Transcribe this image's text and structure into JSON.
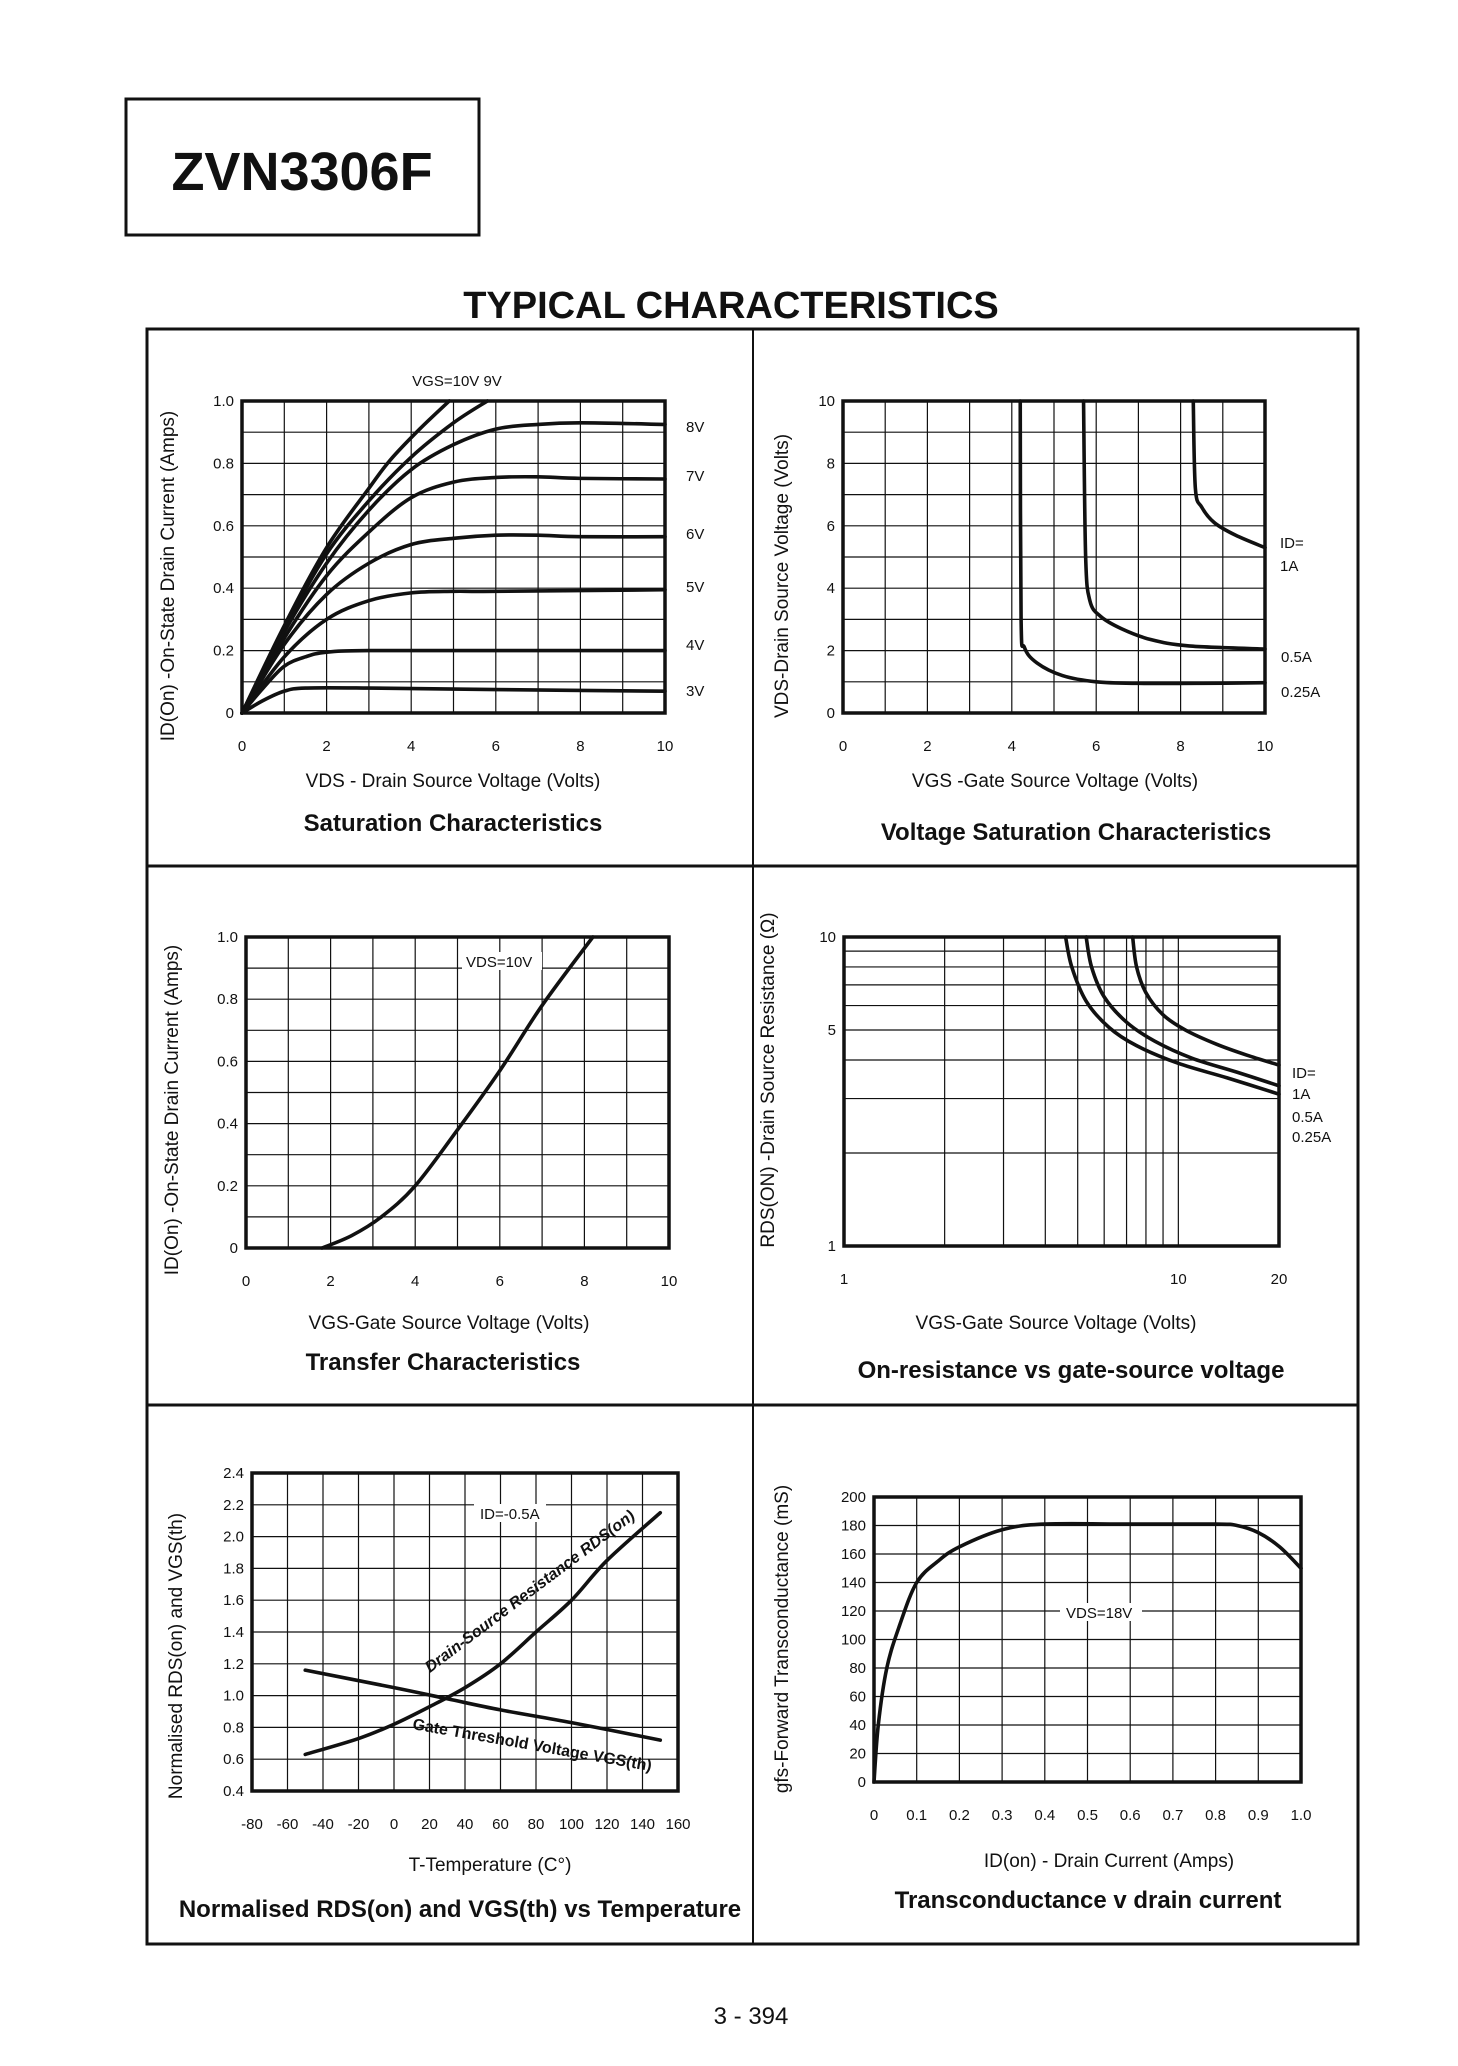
{
  "header": {
    "part_number": "ZVN3306F",
    "section_title": "TYPICAL CHARACTERISTICS"
  },
  "footer": {
    "page_number": "3 - 394"
  },
  "chart_data": [
    {
      "type": "line",
      "title": "Saturation Characteristics",
      "xlabel": "VDS - Drain Source Voltage (Volts)",
      "ylabel": "ID(On) -On-State Drain Current (Amps)",
      "xlim": [
        0,
        10
      ],
      "ylim": [
        0,
        1.0
      ],
      "xticks": [
        "0",
        "2",
        "4",
        "6",
        "8",
        "10"
      ],
      "yticks": [
        "0",
        "0.2",
        "0.4",
        "0.6",
        "0.8",
        "1.0"
      ],
      "grid": true,
      "annotations": {
        "top": "VGS=10V  9V"
      },
      "series": [
        {
          "name": "10V",
          "x": [
            0,
            1,
            2,
            3,
            3.5,
            4.2,
            4.9
          ],
          "y": [
            0,
            0.28,
            0.53,
            0.72,
            0.81,
            0.91,
            1.0
          ]
        },
        {
          "name": "9V",
          "x": [
            0,
            1,
            2,
            3,
            4,
            5,
            5.8
          ],
          "y": [
            0,
            0.27,
            0.51,
            0.68,
            0.82,
            0.93,
            1.0
          ]
        },
        {
          "name": "8V",
          "x": [
            0,
            1,
            2,
            3,
            4,
            5,
            6,
            7,
            8,
            10
          ],
          "y": [
            0,
            0.26,
            0.48,
            0.65,
            0.78,
            0.86,
            0.91,
            0.925,
            0.93,
            0.925
          ]
        },
        {
          "name": "7V",
          "x": [
            0,
            1,
            2,
            3,
            4,
            5,
            6,
            7,
            8,
            10
          ],
          "y": [
            0,
            0.24,
            0.44,
            0.58,
            0.69,
            0.74,
            0.755,
            0.757,
            0.752,
            0.75
          ]
        },
        {
          "name": "6V",
          "x": [
            0,
            1,
            2,
            3,
            4,
            5,
            6,
            7,
            8,
            10
          ],
          "y": [
            0,
            0.22,
            0.38,
            0.48,
            0.54,
            0.56,
            0.57,
            0.57,
            0.565,
            0.565
          ]
        },
        {
          "name": "5V",
          "x": [
            0,
            1,
            2,
            3,
            4,
            5,
            6,
            10
          ],
          "y": [
            0,
            0.18,
            0.3,
            0.36,
            0.385,
            0.39,
            0.39,
            0.395
          ]
        },
        {
          "name": "4V",
          "x": [
            0,
            0.5,
            1,
            1.5,
            2,
            3,
            6,
            10
          ],
          "y": [
            0,
            0.08,
            0.15,
            0.18,
            0.195,
            0.2,
            0.2,
            0.2
          ]
        },
        {
          "name": "3V",
          "x": [
            0,
            0.5,
            1,
            1.5,
            3,
            6,
            10
          ],
          "y": [
            0,
            0.04,
            0.07,
            0.08,
            0.08,
            0.075,
            0.07
          ]
        }
      ],
      "series_labels": [
        "8V",
        "7V",
        "6V",
        "5V",
        "4V",
        "3V"
      ]
    },
    {
      "type": "line",
      "title": "Voltage Saturation Characteristics",
      "xlabel": "VGS -Gate Source Voltage (Volts)",
      "ylabel": "VDS-Drain Source  Voltage (Volts)",
      "xlim": [
        0,
        10
      ],
      "ylim": [
        0,
        10
      ],
      "xticks": [
        "0",
        "2",
        "4",
        "6",
        "8",
        "10"
      ],
      "yticks": [
        "0",
        "2",
        "4",
        "6",
        "8",
        "10"
      ],
      "grid": true,
      "annotations": {
        "id_label": "ID=",
        "labels": [
          "1A",
          "0.5A",
          "0.25A"
        ]
      },
      "series": [
        {
          "name": "1A",
          "x": [
            8.3,
            8.35,
            8.5,
            8.8,
            9.3,
            10
          ],
          "y": [
            10,
            7.2,
            6.6,
            6.1,
            5.7,
            5.3
          ]
        },
        {
          "name": "0.5A",
          "x": [
            5.7,
            5.75,
            5.85,
            6.1,
            6.6,
            7.3,
            8.2,
            10
          ],
          "y": [
            10,
            5,
            3.6,
            3.1,
            2.7,
            2.35,
            2.15,
            2.05
          ]
        },
        {
          "name": "0.25A",
          "x": [
            4.2,
            4.22,
            4.3,
            4.6,
            5.2,
            6,
            7,
            8.5,
            10
          ],
          "y": [
            10,
            3,
            2.1,
            1.6,
            1.2,
            1.0,
            0.95,
            0.95,
            0.97
          ]
        }
      ]
    },
    {
      "type": "line",
      "title": "Transfer Characteristics",
      "xlabel": "VGS-Gate Source Voltage  (Volts)",
      "ylabel": "ID(On) -On-State Drain Current (Amps)",
      "xlim": [
        0,
        10
      ],
      "ylim": [
        0,
        1.0
      ],
      "xticks": [
        "0",
        "2",
        "4",
        "6",
        "8",
        "10"
      ],
      "yticks": [
        "0",
        "0.2",
        "0.4",
        "0.6",
        "0.8",
        "1.0"
      ],
      "grid": true,
      "annotations": {
        "vds": "VDS=10V"
      },
      "series": [
        {
          "x": [
            1.8,
            2.5,
            3.2,
            4,
            5,
            6,
            7,
            8.2
          ],
          "y": [
            0,
            0.04,
            0.1,
            0.2,
            0.38,
            0.57,
            0.78,
            1.0
          ]
        }
      ]
    },
    {
      "type": "line",
      "title": "On-resistance vs gate-source voltage",
      "xlabel": "VGS-Gate Source Voltage (Volts)",
      "ylabel": "RDS(ON) -Drain Source Resistance (Ω)",
      "xscale": "log",
      "yscale": "log",
      "xlim": [
        1,
        20
      ],
      "ylim": [
        1,
        10
      ],
      "xticks": [
        "1",
        "10",
        "20"
      ],
      "yticks": [
        "1",
        "5",
        "10"
      ],
      "grid": true,
      "annotations": {
        "id_label": "ID=",
        "labels": [
          "1A",
          "0.5A",
          "0.25A"
        ]
      },
      "series": [
        {
          "name": "1A",
          "x": [
            7.3,
            7.5,
            8,
            9,
            10.5,
            13,
            16,
            20
          ],
          "y": [
            10,
            8,
            6.6,
            5.6,
            5,
            4.5,
            4.15,
            3.85
          ]
        },
        {
          "name": "0.5A",
          "x": [
            5.3,
            5.5,
            6,
            7,
            8.5,
            11,
            15,
            20
          ],
          "y": [
            10,
            8,
            6.4,
            5.3,
            4.6,
            4.05,
            3.65,
            3.3
          ]
        },
        {
          "name": "0.25A",
          "x": [
            4.6,
            4.8,
            5.3,
            6.2,
            7.5,
            10,
            14,
            20
          ],
          "y": [
            10,
            8,
            6.2,
            5.1,
            4.45,
            3.9,
            3.5,
            3.1
          ]
        }
      ]
    },
    {
      "type": "line",
      "title": "Normalised RDS(on) and VGS(th) vs Temperature",
      "xlabel": "T-Temperature (C°)",
      "ylabel": "Normalised RDS(on) and VGS(th)",
      "xlim": [
        -80,
        160
      ],
      "ylim": [
        0.4,
        2.4
      ],
      "xticks": [
        "-80",
        "-60",
        "-40",
        "-20",
        "0",
        "20",
        "40",
        "60",
        "80",
        "100",
        "120",
        "140",
        "160"
      ],
      "yticks": [
        "0.4",
        "0.6",
        "0.8",
        "1.0",
        "1.2",
        "1.4",
        "1.6",
        "1.8",
        "2.0",
        "2.2",
        "2.4"
      ],
      "grid": true,
      "annotations": {
        "id": "ID=-0.5A"
      },
      "series": [
        {
          "name": "Drain-Source Resistance RDS(on)",
          "x": [
            -50,
            -20,
            0,
            20,
            40,
            60,
            80,
            100,
            120,
            150
          ],
          "y": [
            0.63,
            0.73,
            0.82,
            0.93,
            1.05,
            1.2,
            1.4,
            1.6,
            1.85,
            2.15
          ]
        },
        {
          "name": "Gate Threshold Voltage VGS(th)",
          "x": [
            -50,
            0,
            30,
            60,
            100,
            150
          ],
          "y": [
            1.16,
            1.05,
            0.98,
            0.91,
            0.83,
            0.72
          ]
        }
      ]
    },
    {
      "type": "line",
      "title": "Transconductance v drain current",
      "xlabel": "ID(on) - Drain Current (Amps)",
      "ylabel": "gfs-Forward Transconductance (mS)",
      "xlim": [
        0,
        1.0
      ],
      "ylim": [
        0,
        200
      ],
      "xticks": [
        "0",
        "0.1",
        "0.2",
        "0.3",
        "0.4",
        "0.5",
        "0.6",
        "0.7",
        "0.8",
        "0.9",
        "1.0"
      ],
      "yticks": [
        "0",
        "20",
        "40",
        "60",
        "80",
        "100",
        "120",
        "140",
        "160",
        "180",
        "200"
      ],
      "grid": true,
      "annotations": {
        "vds": "VDS=18V"
      },
      "series": [
        {
          "x": [
            0,
            0.01,
            0.03,
            0.06,
            0.1,
            0.15,
            0.2,
            0.3,
            0.4,
            0.6,
            0.8,
            0.85,
            0.9,
            0.95,
            1.0
          ],
          "y": [
            0,
            40,
            80,
            110,
            140,
            155,
            165,
            177,
            181,
            181,
            181,
            180,
            175,
            165,
            150
          ]
        }
      ]
    }
  ]
}
